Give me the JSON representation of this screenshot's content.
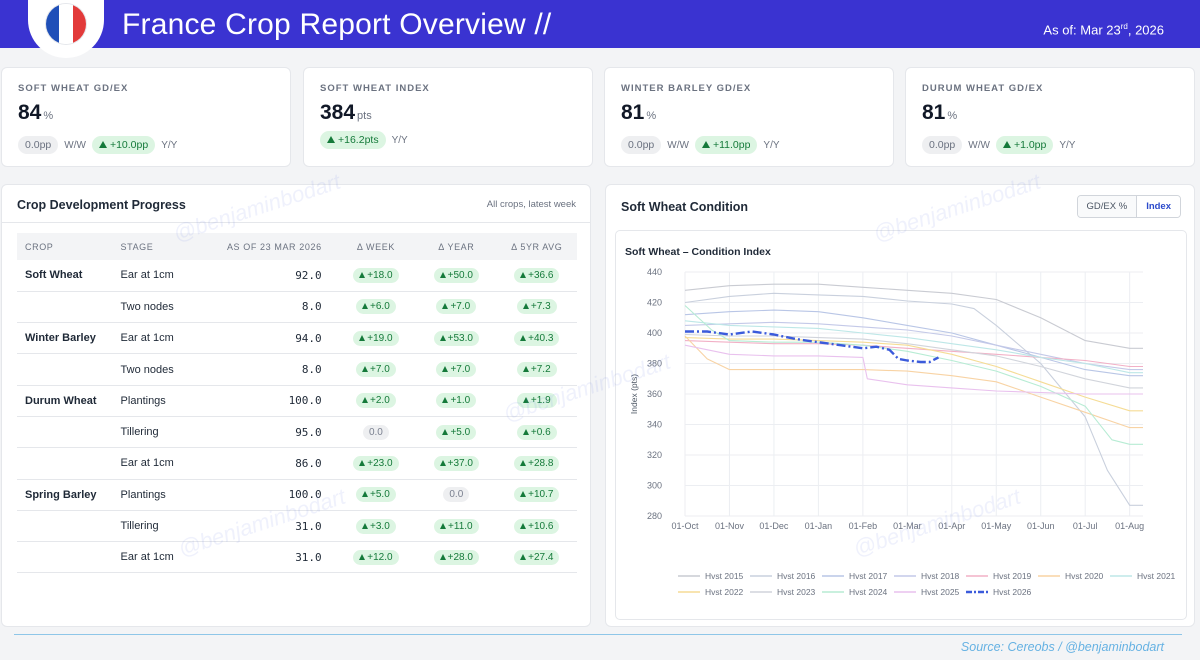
{
  "header": {
    "title": "France Crop Report Overview //",
    "date_prefix": "As of: Mar 23",
    "date_sup": "rd",
    "date_suffix": ", 2026"
  },
  "kpis": [
    {
      "label": "SOFT WHEAT GD/EX",
      "value": "84",
      "unit": "%",
      "ww": "0.0pp",
      "ww_label": "W/W",
      "yy": "+10.0pp",
      "yy_label": "Y/Y"
    },
    {
      "label": "SOFT WHEAT INDEX",
      "value": "384",
      "unit": "pts",
      "yy": "+16.2pts",
      "yy_label": "Y/Y"
    },
    {
      "label": "WINTER BARLEY GD/EX",
      "value": "81",
      "unit": "%",
      "ww": "0.0pp",
      "ww_label": "W/W",
      "yy": "+11.0pp",
      "yy_label": "Y/Y"
    },
    {
      "label": "DURUM WHEAT GD/EX",
      "value": "81",
      "unit": "%",
      "ww": "0.0pp",
      "ww_label": "W/W",
      "yy": "+1.0pp",
      "yy_label": "Y/Y"
    }
  ],
  "progress": {
    "title": "Crop Development Progress",
    "subtitle": "All crops, latest week",
    "columns": [
      "CROP",
      "STAGE",
      "AS OF 23 MAR 2026",
      "Δ WEEK",
      "Δ YEAR",
      "Δ 5YR AVG"
    ],
    "rows": [
      {
        "crop": "Soft Wheat",
        "stage": "Ear at 1cm",
        "value": "92.0",
        "week": "+18.0",
        "year": "+50.0",
        "avg": "+36.6"
      },
      {
        "crop": "",
        "stage": "Two nodes",
        "value": "8.0",
        "week": "+6.0",
        "year": "+7.0",
        "avg": "+7.3"
      },
      {
        "crop": "Winter Barley",
        "stage": "Ear at 1cm",
        "value": "94.0",
        "week": "+19.0",
        "year": "+53.0",
        "avg": "+40.3"
      },
      {
        "crop": "",
        "stage": "Two nodes",
        "value": "8.0",
        "week": "+7.0",
        "year": "+7.0",
        "avg": "+7.2"
      },
      {
        "crop": "Durum Wheat",
        "stage": "Plantings",
        "value": "100.0",
        "week": "+2.0",
        "year": "+1.0",
        "avg": "+1.9"
      },
      {
        "crop": "",
        "stage": "Tillering",
        "value": "95.0",
        "week": "0.0",
        "year": "+5.0",
        "avg": "+0.6"
      },
      {
        "crop": "",
        "stage": "Ear at 1cm",
        "value": "86.0",
        "week": "+23.0",
        "year": "+37.0",
        "avg": "+28.8"
      },
      {
        "crop": "Spring Barley",
        "stage": "Plantings",
        "value": "100.0",
        "week": "+5.0",
        "year": "0.0",
        "avg": "+10.7"
      },
      {
        "crop": "",
        "stage": "Tillering",
        "value": "31.0",
        "week": "+3.0",
        "year": "+11.0",
        "avg": "+10.6"
      },
      {
        "crop": "",
        "stage": "Ear at 1cm",
        "value": "31.0",
        "week": "+12.0",
        "year": "+28.0",
        "avg": "+27.4"
      }
    ]
  },
  "condition": {
    "title": "Soft Wheat Condition",
    "toggle": [
      "GD/EX %",
      "Index"
    ],
    "toggle_active": "Index"
  },
  "chart_data": {
    "type": "line",
    "title": "Soft Wheat – Condition Index",
    "xlabel": "",
    "ylabel": "Index (pts)",
    "ylim": [
      280,
      440
    ],
    "yticks": [
      280,
      300,
      320,
      340,
      360,
      380,
      400,
      420,
      440
    ],
    "xlim": [
      0,
      10.3
    ],
    "xticks": [
      {
        "pos": 0,
        "label": "01-Oct"
      },
      {
        "pos": 1,
        "label": "01-Nov"
      },
      {
        "pos": 2,
        "label": "01-Dec"
      },
      {
        "pos": 3,
        "label": "01-Jan"
      },
      {
        "pos": 4,
        "label": "01-Feb"
      },
      {
        "pos": 5,
        "label": "01-Mar"
      },
      {
        "pos": 6,
        "label": "01-Apr"
      },
      {
        "pos": 7,
        "label": "01-May"
      },
      {
        "pos": 8,
        "label": "01-Jun"
      },
      {
        "pos": 9,
        "label": "01-Jul"
      },
      {
        "pos": 10,
        "label": "01-Aug"
      }
    ],
    "series": [
      {
        "name": "Hvst 2015",
        "color": "#c9cbd2",
        "x": [
          0,
          1,
          2,
          3,
          4,
          5,
          6,
          7,
          8,
          9,
          10,
          10.3
        ],
        "values": [
          428,
          431,
          432,
          432,
          430,
          428,
          426,
          422,
          410,
          395,
          390,
          390
        ]
      },
      {
        "name": "Hvst 2016",
        "color": "#c9d0dd",
        "x": [
          0,
          1,
          2,
          3,
          4,
          5,
          6,
          6.5,
          7,
          8,
          9,
          9.5,
          10,
          10.3
        ],
        "values": [
          420,
          424,
          426,
          425,
          424,
          421,
          419,
          416,
          405,
          380,
          345,
          310,
          287,
          287
        ]
      },
      {
        "name": "Hvst 2017",
        "color": "#b9c6e6",
        "x": [
          0,
          1,
          2,
          3,
          4,
          5,
          6,
          7,
          8,
          9,
          10,
          10.3
        ],
        "values": [
          412,
          414,
          415,
          414,
          410,
          405,
          400,
          392,
          384,
          376,
          372,
          372
        ]
      },
      {
        "name": "Hvst 2018",
        "color": "#c4c9e8",
        "x": [
          0,
          1,
          2,
          3,
          4,
          5,
          6,
          7,
          8,
          9,
          10,
          10.3
        ],
        "values": [
          405,
          406,
          407,
          406,
          404,
          402,
          398,
          392,
          386,
          380,
          376,
          376
        ]
      },
      {
        "name": "Hvst 2019",
        "color": "#f2b0c6",
        "x": [
          0,
          1,
          2,
          3,
          4,
          5,
          6,
          7,
          8,
          9,
          10,
          10.3
        ],
        "values": [
          395,
          394,
          393,
          393,
          392,
          390,
          388,
          386,
          384,
          382,
          378,
          378
        ]
      },
      {
        "name": "Hvst 2020",
        "color": "#f8d3a4",
        "x": [
          0,
          0.5,
          1,
          2,
          3,
          4,
          5,
          6,
          7,
          8,
          9,
          10,
          10.3
        ],
        "values": [
          398,
          383,
          376,
          376,
          376,
          376,
          375,
          372,
          368,
          358,
          348,
          338,
          338
        ]
      },
      {
        "name": "Hvst 2021",
        "color": "#bde7e7",
        "x": [
          0,
          1,
          2,
          3,
          4,
          5,
          6,
          7,
          8,
          9,
          10,
          10.3
        ],
        "values": [
          408,
          405,
          404,
          403,
          400,
          397,
          393,
          389,
          384,
          380,
          374,
          374
        ]
      },
      {
        "name": "Hvst 2022",
        "color": "#f5dc95",
        "x": [
          0,
          1,
          2,
          3,
          4,
          5,
          6,
          7,
          8,
          9,
          10,
          10.3
        ],
        "values": [
          397,
          396,
          396,
          395,
          394,
          392,
          386,
          378,
          368,
          358,
          349,
          349
        ]
      },
      {
        "name": "Hvst 2023",
        "color": "#d1d4db",
        "x": [
          0,
          1,
          2,
          3,
          4,
          5,
          6,
          7,
          8,
          9,
          10,
          10.3
        ],
        "values": [
          399,
          398,
          398,
          397,
          396,
          393,
          389,
          385,
          378,
          370,
          364,
          364
        ]
      },
      {
        "name": "Hvst 2024",
        "color": "#b7ecd4",
        "x": [
          0,
          0.6,
          1,
          2,
          3,
          4,
          5,
          6,
          7,
          8,
          9,
          9.6,
          10,
          10.3
        ],
        "values": [
          418,
          402,
          395,
          394,
          394,
          392,
          388,
          382,
          375,
          365,
          352,
          330,
          327,
          327
        ]
      },
      {
        "name": "Hvst 2025",
        "color": "#e9c1ee",
        "x": [
          0,
          1,
          2,
          3,
          4,
          4.1,
          5,
          6,
          7,
          8,
          9,
          10,
          10.3
        ],
        "values": [
          392,
          386,
          385,
          385,
          384,
          370,
          366,
          364,
          362,
          361,
          360,
          360,
          360
        ]
      },
      {
        "name": "Hvst 2026",
        "color": "#3b5bdb",
        "dashed": true,
        "x": [
          0,
          0.5,
          1,
          1.5,
          2,
          2.5,
          3,
          3.5,
          4,
          4.3,
          4.6,
          4.8,
          5,
          5.3,
          5.5,
          5.7
        ],
        "values": [
          401,
          401,
          399,
          401,
          399,
          396,
          394,
          392,
          390,
          391,
          389,
          383,
          382,
          381,
          381,
          384
        ]
      }
    ]
  },
  "watermark": "@benjaminbodart",
  "footer": {
    "source": "Source: Cereobs / @benjaminbodart"
  }
}
